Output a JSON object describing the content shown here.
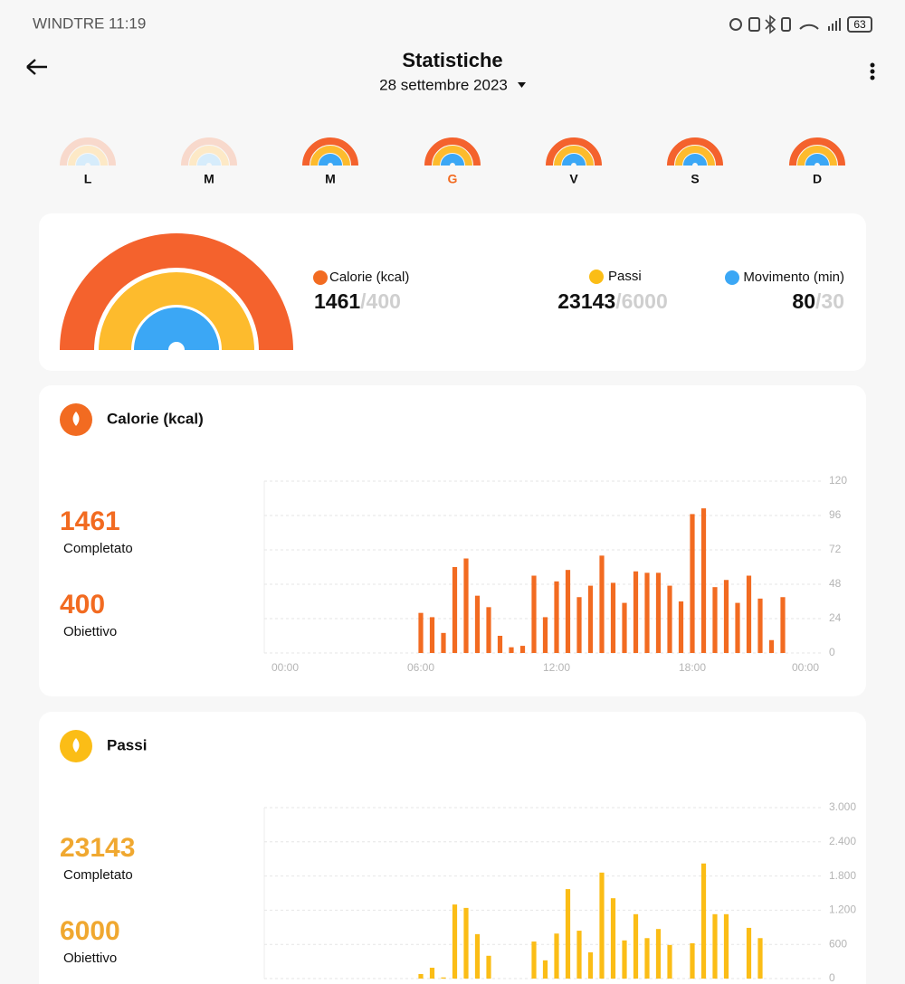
{
  "status": {
    "carrier_time": "WINDTRE 11:19",
    "battery": "63"
  },
  "header": {
    "title": "Statistiche",
    "date": "28 settembre 2023"
  },
  "days": [
    "L",
    "M",
    "M",
    "G",
    "V",
    "S",
    "D"
  ],
  "summary": [
    {
      "label": "Calorie (kcal)",
      "value": "1461",
      "goal": "/400"
    },
    {
      "label": "Passi",
      "value": "23143",
      "goal": "/6000"
    },
    {
      "label": "Movimento (min)",
      "value": "80",
      "goal": "/30"
    }
  ],
  "chart_data": [
    {
      "type": "bar",
      "title": "Calorie (kcal)",
      "completed": "1461",
      "completed_label": "Completato",
      "goal": "400",
      "goal_label": "Obiettivo",
      "color": "#f26b21",
      "x": [
        6,
        6.5,
        7,
        7.5,
        8,
        8.5,
        9,
        9.5,
        10,
        10.5,
        11,
        11.5,
        12,
        12.5,
        13,
        13.5,
        14,
        14.5,
        15,
        15.5,
        16,
        16.5,
        17,
        17.5,
        18,
        18.5,
        19,
        19.5,
        20,
        20.5,
        21,
        21.5,
        22
      ],
      "values": [
        28,
        25,
        14,
        60,
        66,
        40,
        32,
        12,
        4,
        5,
        54,
        25,
        50,
        58,
        39,
        47,
        68,
        49,
        35,
        57,
        56,
        56,
        47,
        36,
        97,
        101,
        46,
        51,
        35,
        54,
        38,
        9,
        39
      ],
      "xlim": [
        0,
        24
      ],
      "xticks": [
        {
          "value": 0,
          "label": "00:00"
        },
        {
          "value": 6,
          "label": "06:00"
        },
        {
          "value": 12,
          "label": "12:00"
        },
        {
          "value": 18,
          "label": "18:00"
        },
        {
          "value": 24,
          "label": "00:00"
        }
      ],
      "ylim": [
        0,
        120
      ],
      "yticks": [
        0,
        24,
        48,
        72,
        96,
        120
      ],
      "grid": true
    },
    {
      "type": "bar",
      "title": "Passi",
      "completed": "23143",
      "completed_label": "Completato",
      "goal": "6000",
      "goal_label": "Obiettivo",
      "color": "#fbbd16",
      "x": [
        6,
        6.5,
        7,
        7.5,
        8,
        8.5,
        9,
        9.5,
        10,
        10.5,
        11,
        11.5,
        12,
        12.5,
        13,
        13.5,
        14,
        14.5,
        15,
        15.5,
        16,
        16.5,
        17,
        17.5,
        18,
        18.5,
        19,
        19.5,
        20,
        20.5,
        21,
        21.5,
        22
      ],
      "values": [
        80,
        190,
        20,
        1300,
        1240,
        780,
        400,
        0,
        0,
        0,
        650,
        320,
        790,
        1570,
        840,
        460,
        1860,
        1410,
        670,
        1130,
        710,
        870,
        590,
        0,
        620,
        2020,
        1130,
        1130,
        0,
        890,
        710,
        0,
        0
      ],
      "xlim": [
        0,
        24
      ],
      "ylim": [
        0,
        3000
      ],
      "yticks": [
        0,
        600,
        {
          "value": 1200,
          "label": "1.200"
        },
        {
          "value": 1800,
          "label": "1.800"
        },
        {
          "value": 2400,
          "label": "2.400"
        },
        {
          "value": 3000,
          "label": "3.000"
        }
      ],
      "grid": true
    }
  ]
}
